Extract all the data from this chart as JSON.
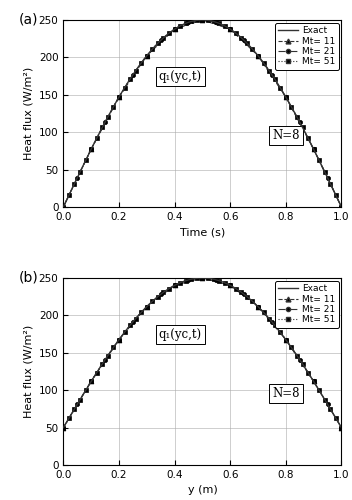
{
  "title_a": "(a)",
  "title_b": "(b)",
  "ylabel": "Heat flux (W/m²)",
  "xlabel_a": "Time (s)",
  "xlabel_b": "y (m)",
  "annotation_a": "q₁(yc,t)",
  "annotation_b": "q₁(yc,t)",
  "n_label": "N=8",
  "legend_entries": [
    "Exact",
    "Mt= 11",
    "Mt= 21",
    "Mt= 51"
  ],
  "ylim": [
    0,
    250
  ],
  "yticks": [
    0,
    50,
    100,
    150,
    200,
    250
  ],
  "xlim_a": [
    0,
    1
  ],
  "xticks_a": [
    0,
    0.2,
    0.4,
    0.6,
    0.8,
    1.0
  ],
  "xlim_b": [
    0,
    1
  ],
  "xticks_b": [
    0,
    0.2,
    0.4,
    0.6,
    0.8,
    1.0
  ],
  "line_color": "#333333",
  "bg_color": "#ffffff",
  "grid_color": "#aaaaaa"
}
